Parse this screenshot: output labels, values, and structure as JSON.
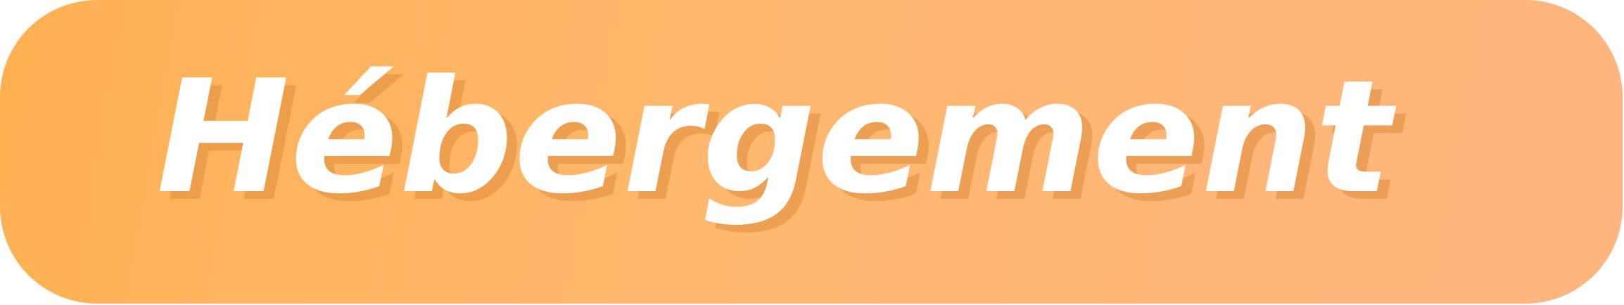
{
  "banner": {
    "title": "Hébergement",
    "colors": {
      "gradient_start": "#feb052",
      "gradient_end": "#ffb57f",
      "text": "#ffffff",
      "shadow": "#de8c3c"
    }
  }
}
